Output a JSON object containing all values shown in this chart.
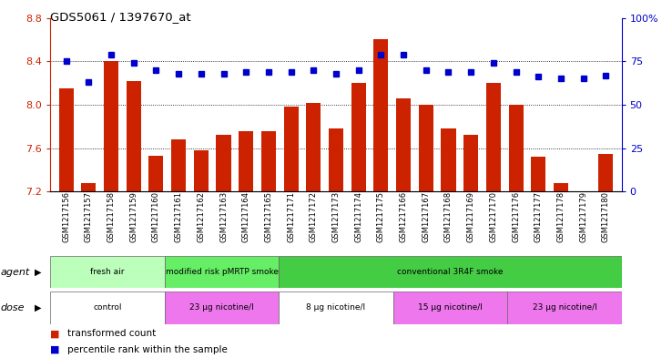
{
  "title": "GDS5061 / 1397670_at",
  "samples": [
    "GSM1217156",
    "GSM1217157",
    "GSM1217158",
    "GSM1217159",
    "GSM1217160",
    "GSM1217161",
    "GSM1217162",
    "GSM1217163",
    "GSM1217164",
    "GSM1217165",
    "GSM1217171",
    "GSM1217172",
    "GSM1217173",
    "GSM1217174",
    "GSM1217175",
    "GSM1217166",
    "GSM1217167",
    "GSM1217168",
    "GSM1217169",
    "GSM1217170",
    "GSM1217176",
    "GSM1217177",
    "GSM1217178",
    "GSM1217179",
    "GSM1217180"
  ],
  "bar_values": [
    8.15,
    7.28,
    8.4,
    8.22,
    7.53,
    7.68,
    7.58,
    7.72,
    7.76,
    7.76,
    7.98,
    8.02,
    7.78,
    8.2,
    8.6,
    8.06,
    8.0,
    7.78,
    7.72,
    8.2,
    8.0,
    7.52,
    7.28,
    7.2,
    7.55
  ],
  "percentile_values": [
    75,
    63,
    79,
    74,
    70,
    68,
    68,
    68,
    69,
    69,
    69,
    70,
    68,
    70,
    79,
    79,
    70,
    69,
    69,
    74,
    69,
    66,
    65,
    65,
    67
  ],
  "bar_color": "#cc2200",
  "dot_color": "#0000cc",
  "ylim_left": [
    7.2,
    8.8
  ],
  "ylim_right": [
    0,
    100
  ],
  "yticks_left": [
    7.2,
    7.6,
    8.0,
    8.4,
    8.8
  ],
  "yticks_right": [
    0,
    25,
    50,
    75,
    100
  ],
  "ytick_right_labels": [
    "0",
    "25",
    "50",
    "75",
    "100%"
  ],
  "grid_values": [
    7.6,
    8.0,
    8.4
  ],
  "agent_groups": [
    {
      "label": "fresh air",
      "start": 0,
      "end": 4,
      "color": "#bbffbb"
    },
    {
      "label": "modified risk pMRTP smoke",
      "start": 5,
      "end": 9,
      "color": "#66ee66"
    },
    {
      "label": "conventional 3R4F smoke",
      "start": 10,
      "end": 24,
      "color": "#44cc44"
    }
  ],
  "dose_groups": [
    {
      "label": "control",
      "start": 0,
      "end": 4,
      "color": "#ffffff"
    },
    {
      "label": "23 μg nicotine/l",
      "start": 5,
      "end": 9,
      "color": "#ee77ee"
    },
    {
      "label": "8 μg nicotine/l",
      "start": 10,
      "end": 14,
      "color": "#ffffff"
    },
    {
      "label": "15 μg nicotine/l",
      "start": 15,
      "end": 19,
      "color": "#ee77ee"
    },
    {
      "label": "23 μg nicotine/l",
      "start": 20,
      "end": 24,
      "color": "#ee77ee"
    }
  ],
  "legend_bar_label": "transformed count",
  "legend_dot_label": "percentile rank within the sample",
  "background_color": "#ffffff"
}
